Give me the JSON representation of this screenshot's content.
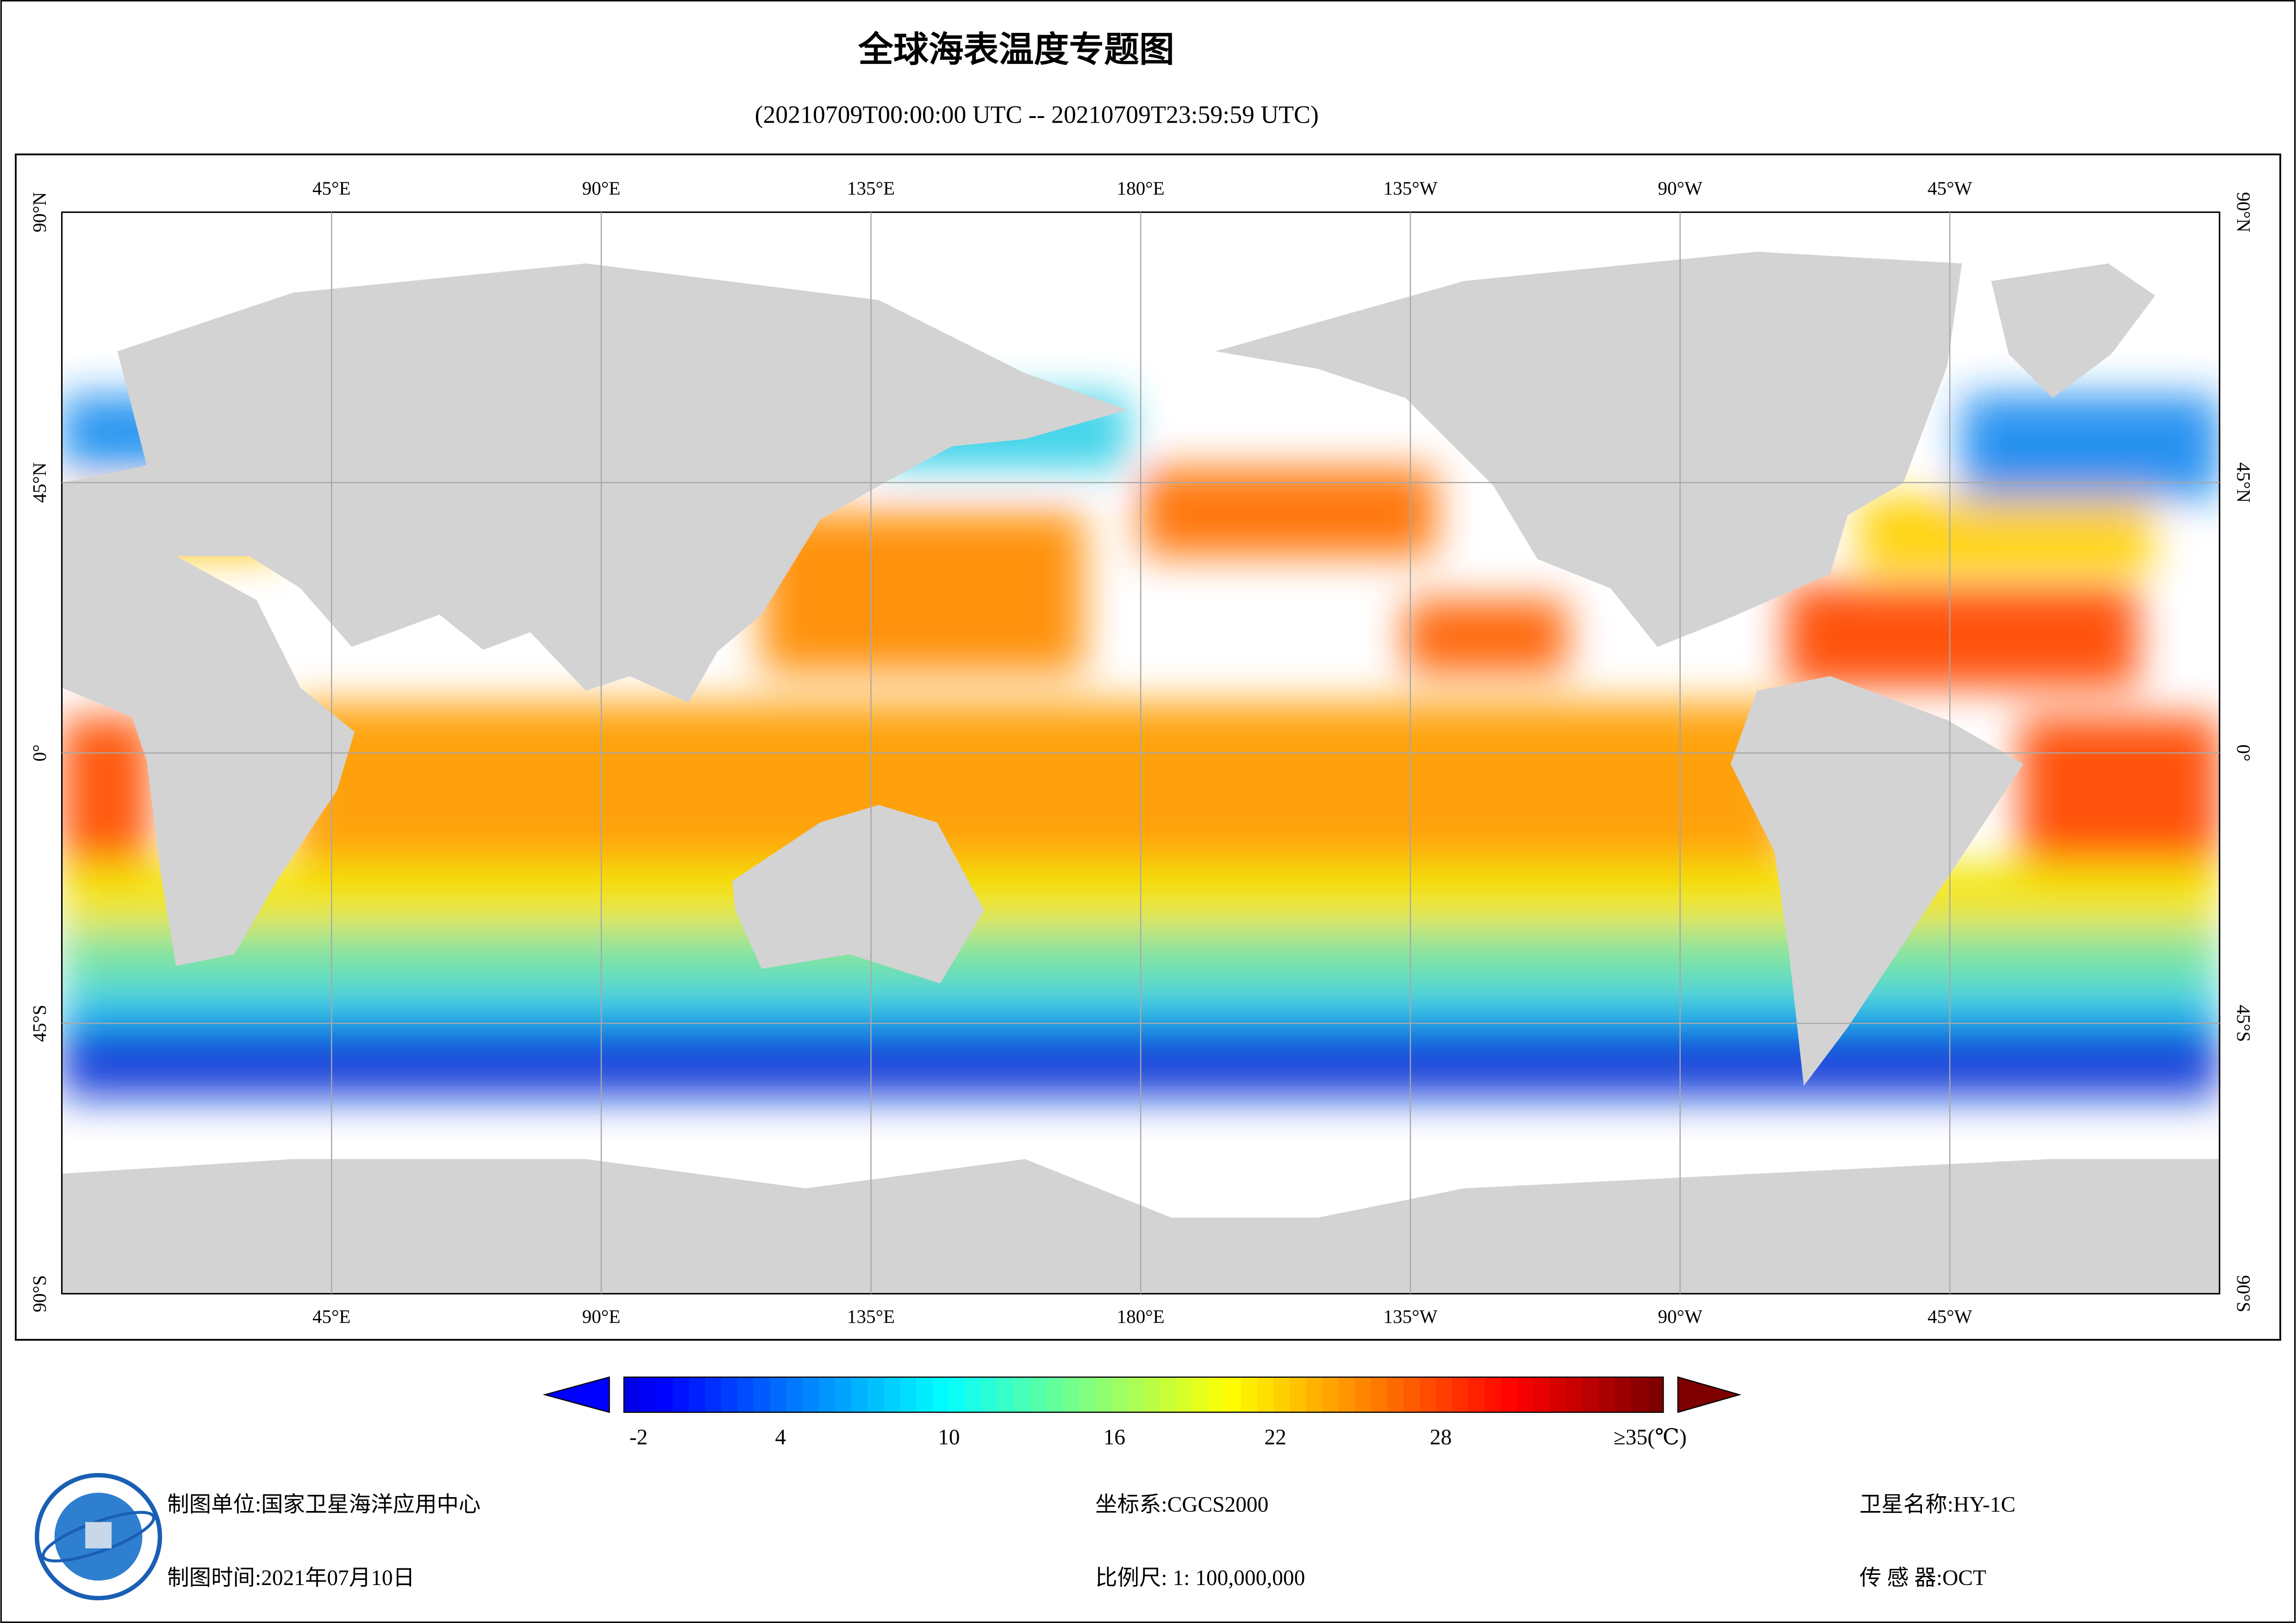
{
  "title": "全球海表温度专题图",
  "subtitle": "(20210709T00:00:00 UTC -- 20210709T23:59:59 UTC)",
  "map": {
    "lon_labels": [
      "45°E",
      "90°E",
      "135°E",
      "180°E",
      "135°W",
      "90°W",
      "45°W"
    ],
    "lat_labels": [
      "90°N",
      "45°N",
      "0°",
      "45°S",
      "90°S"
    ]
  },
  "colorbar": {
    "tick_labels": [
      "-2",
      "4",
      "10",
      "16",
      "22",
      "28",
      "≥35(℃)"
    ]
  },
  "footer": {
    "unit": "制图单位:国家卫星海洋应用中心",
    "time": "制图时间:2021年07月10日",
    "crs": "坐标系:CGCS2000",
    "scale": "比例尺: 1: 100,000,000",
    "satellite": "卫星名称:HY-1C",
    "sensor": "传 感 器:OCT"
  }
}
